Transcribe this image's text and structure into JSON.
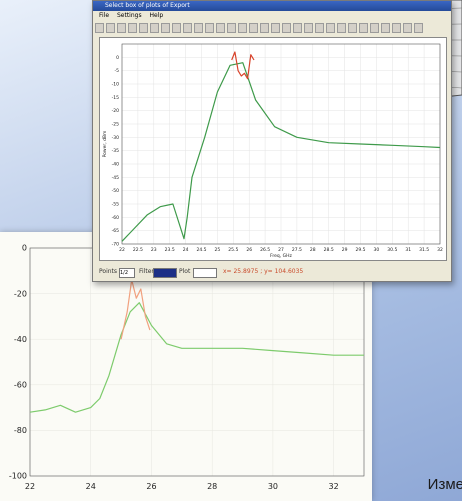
{
  "window": {
    "title": "Select box of plots of Export",
    "menu": [
      "File",
      "Settings",
      "Help"
    ]
  },
  "status": {
    "points_label": "Points",
    "points_value": "1/2",
    "filter_label": "Filter",
    "plot_label": "Plot",
    "readout": "x= 25.8975 ; y= 104.6035"
  },
  "caption": "Изме",
  "colors": {
    "green": "#3e9a4a",
    "red": "#d8432b",
    "back_green": "#7dcb6c",
    "back_red": "#f1a17f"
  },
  "chart_data": [
    {
      "type": "line",
      "title": "",
      "xlabel": "Freq, GHz",
      "ylabel": "Power, dBm",
      "xlim": [
        22,
        32
      ],
      "ylim": [
        -70,
        5
      ],
      "x_ticks": [
        "22",
        "22.5",
        "23",
        "23.5",
        "24",
        "24.5",
        "25",
        "25.5",
        "26",
        "26.5",
        "27",
        "27.5",
        "28",
        "28.5",
        "29",
        "29.5",
        "30",
        "30.5",
        "31",
        "31.5",
        "32"
      ],
      "y_ticks": [
        "0",
        "-5",
        "-10",
        "-15",
        "-20",
        "-25",
        "-30",
        "-35",
        "-40",
        "-45",
        "-50",
        "-55",
        "-60",
        "-65",
        "-70"
      ],
      "series": [
        {
          "color": "green",
          "x": [
            22,
            22.4,
            22.8,
            23.2,
            23.6,
            23.95,
            24.05,
            24.2,
            24.6,
            25.0,
            25.4,
            25.8,
            26.2,
            26.8,
            27.5,
            28.5,
            29.5,
            30.5,
            31.5,
            32
          ],
          "y": [
            -69,
            -64,
            -59,
            -56,
            -55,
            -68,
            -60,
            -45,
            -30,
            -13,
            -3,
            -2,
            -16,
            -26,
            -30,
            -32,
            -32.5,
            -33,
            -33.5,
            -33.8
          ]
        },
        {
          "color": "red",
          "x": [
            25.45,
            25.55,
            25.65,
            25.75,
            25.85,
            25.95,
            26.05,
            26.15
          ],
          "y": [
            -1,
            2,
            -5,
            -7,
            -6,
            -8,
            1,
            -1
          ]
        }
      ]
    },
    {
      "type": "line",
      "title": "",
      "xlabel": "",
      "ylabel": "",
      "xlim": [
        22,
        33
      ],
      "ylim": [
        -100,
        0
      ],
      "x_ticks": [
        "22",
        "24",
        "26",
        "28",
        "30",
        "32"
      ],
      "y_ticks": [
        "0",
        "-20",
        "-40",
        "-60",
        "-80",
        "-100"
      ],
      "series": [
        {
          "color": "back_green",
          "x": [
            22,
            22.5,
            23,
            23.5,
            24,
            24.3,
            24.6,
            25.0,
            25.3,
            25.6,
            26.0,
            26.5,
            27,
            28,
            29,
            30,
            31,
            32,
            33
          ],
          "y": [
            -72,
            -71,
            -69,
            -72,
            -70,
            -66,
            -56,
            -38,
            -28,
            -24,
            -34,
            -42,
            -44,
            -44,
            -44,
            -45,
            -46,
            -47,
            -47
          ]
        },
        {
          "color": "back_red",
          "x": [
            25.0,
            25.2,
            25.35,
            25.5,
            25.65,
            25.8,
            25.95
          ],
          "y": [
            -40,
            -28,
            -14,
            -22,
            -18,
            -30,
            -36
          ]
        }
      ]
    }
  ]
}
